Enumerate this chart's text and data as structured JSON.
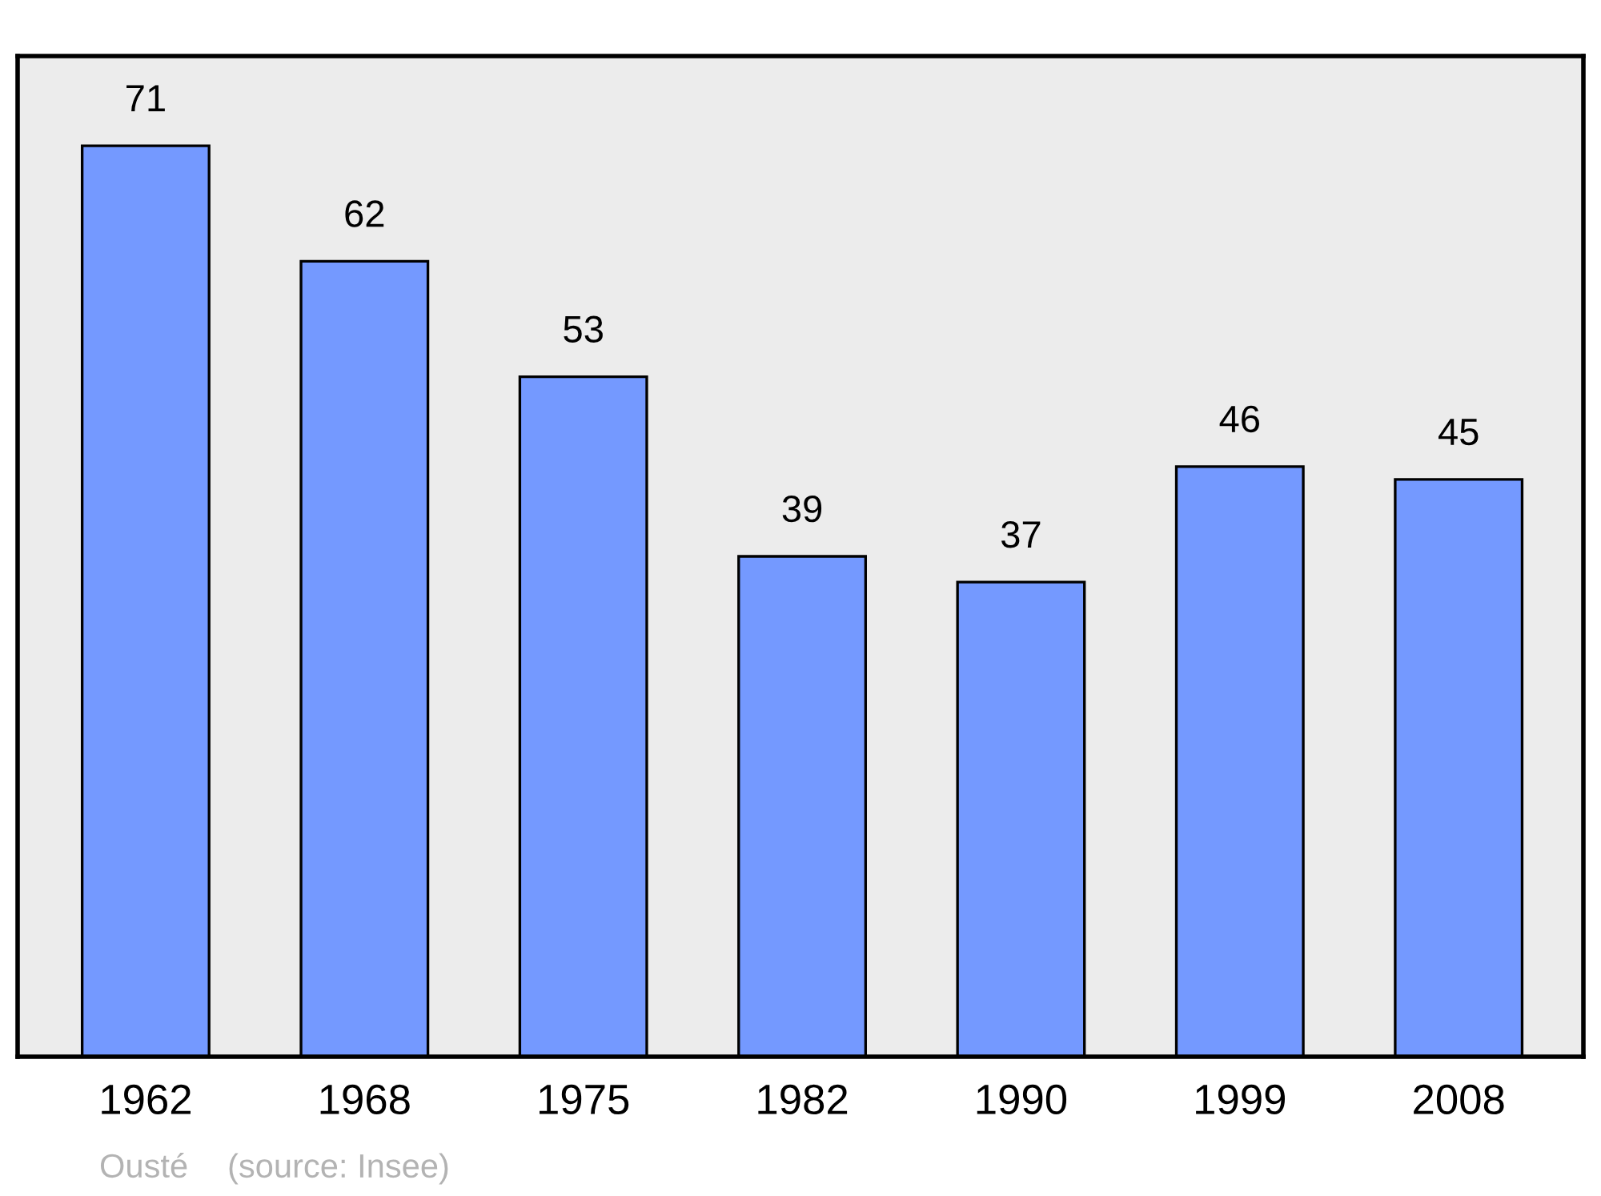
{
  "chart_data": {
    "type": "bar",
    "categories": [
      "1962",
      "1968",
      "1975",
      "1982",
      "1990",
      "1999",
      "2008"
    ],
    "values": [
      71,
      62,
      53,
      39,
      37,
      46,
      45
    ],
    "color": "#7499ff",
    "ylim": [
      0,
      78
    ],
    "tick_labels": "x",
    "data_labels": true,
    "grid": false,
    "legend": false,
    "annotations": [
      "Ousté",
      "(source: Insee)"
    ]
  }
}
